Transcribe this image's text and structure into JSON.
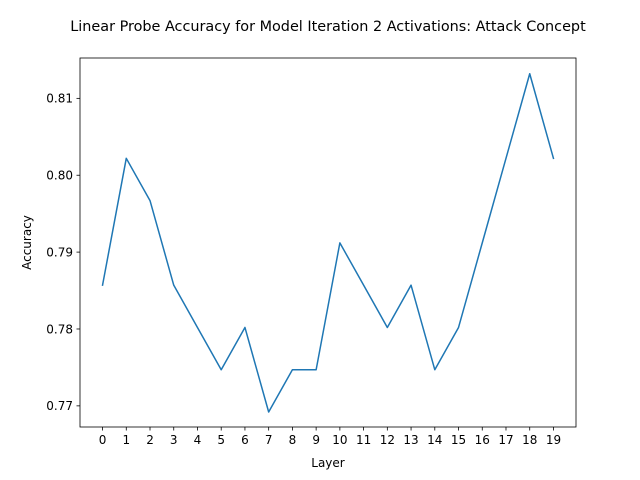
{
  "chart_data": {
    "type": "line",
    "title": "Linear Probe Accuracy for Model Iteration 2 Activations: Attack Concept",
    "xlabel": "Layer",
    "ylabel": "Accuracy",
    "x": [
      0,
      1,
      2,
      3,
      4,
      5,
      6,
      7,
      8,
      9,
      10,
      11,
      12,
      13,
      14,
      15,
      16,
      17,
      18,
      19
    ],
    "series": [
      {
        "values": [
          0.7857,
          0.8022,
          0.7967,
          0.7857,
          0.7802,
          0.7747,
          0.7802,
          0.7692,
          0.7747,
          0.7747,
          0.7912,
          0.7857,
          0.7802,
          0.7857,
          0.7747,
          0.7802,
          0.7912,
          0.8022,
          0.8132,
          0.8022
        ],
        "color": "#1f77b4"
      }
    ],
    "xticks": [
      "0",
      "1",
      "2",
      "3",
      "4",
      "5",
      "6",
      "7",
      "8",
      "9",
      "10",
      "11",
      "12",
      "13",
      "14",
      "15",
      "16",
      "17",
      "18",
      "19"
    ],
    "yticks": [
      0.77,
      0.78,
      0.79,
      0.8,
      0.81
    ],
    "ytick_labels": [
      "0.77",
      "0.78",
      "0.79",
      "0.80",
      "0.81"
    ],
    "xlim": [
      -0.95,
      19.95
    ],
    "ylim": [
      0.76725,
      0.81525
    ],
    "grid": false,
    "legend": "none"
  }
}
